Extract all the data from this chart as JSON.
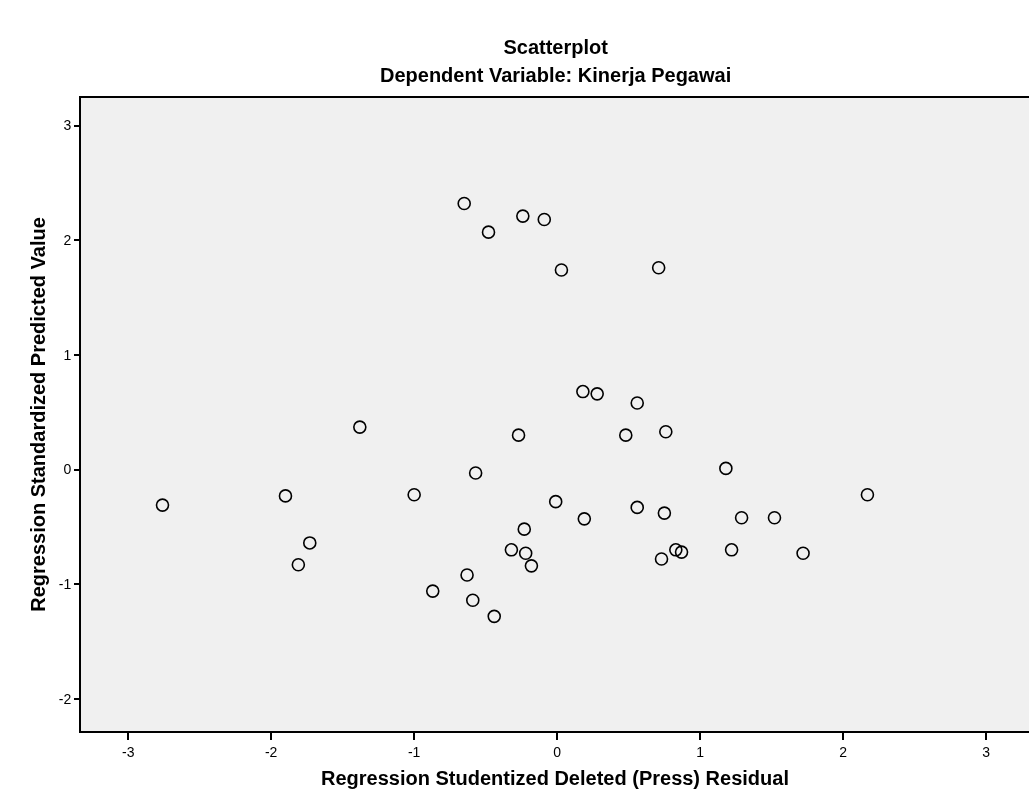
{
  "chart_data": {
    "type": "scatter",
    "title": "Scatterplot",
    "subtitle": "Dependent Variable: Kinerja Pegawai",
    "xlabel": "Regression Studentized Deleted (Press) Residual",
    "ylabel": "Regression Standardized Predicted Value",
    "x": [
      -0.65,
      -0.48,
      -0.24,
      -0.09,
      0.03,
      0.71,
      0.18,
      0.28,
      0.56,
      -1.38,
      -0.27,
      -0.57,
      -1.0,
      -1.9,
      -2.76,
      -0.01,
      -0.23,
      -1.73,
      -0.32,
      -0.22,
      -0.18,
      -1.81,
      -0.63,
      -0.87,
      -0.59,
      -0.44,
      0.48,
      0.76,
      1.18,
      0.19,
      0.56,
      0.75,
      1.29,
      1.52,
      2.17,
      0.83,
      0.87,
      0.73,
      1.22,
      1.72
    ],
    "values": [
      2.32,
      2.07,
      2.21,
      2.18,
      1.74,
      1.76,
      0.68,
      0.66,
      0.58,
      0.37,
      0.3,
      -0.03,
      -0.22,
      -0.23,
      -0.31,
      -0.28,
      -0.52,
      -0.64,
      -0.7,
      -0.73,
      -0.84,
      -0.83,
      -0.92,
      -1.06,
      -1.14,
      -1.28,
      0.3,
      0.33,
      0.01,
      -0.43,
      -0.33,
      -0.38,
      -0.42,
      -0.42,
      -0.22,
      -0.7,
      -0.72,
      -0.78,
      -0.7,
      -0.73
    ],
    "color": "#000000",
    "marker": "circle",
    "grid": false,
    "xlim": [
      -3.33,
      3.3
    ],
    "xticks": [
      -3,
      -2,
      -1,
      0,
      1,
      2,
      3
    ],
    "ylim": [
      -2.28,
      3.24
    ],
    "yticks": [
      -2,
      -1,
      0,
      1,
      2,
      3
    ]
  }
}
